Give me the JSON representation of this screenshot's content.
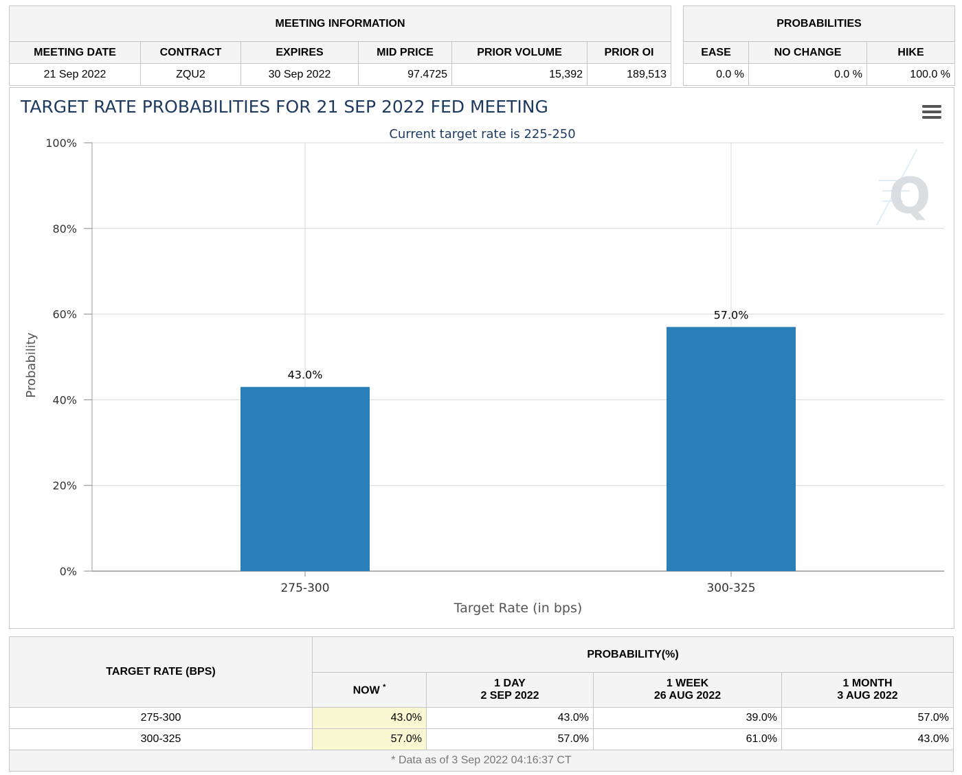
{
  "meeting_info": {
    "title": "MEETING INFORMATION",
    "columns": [
      "MEETING DATE",
      "CONTRACT",
      "EXPIRES",
      "MID PRICE",
      "PRIOR VOLUME",
      "PRIOR OI"
    ],
    "row": [
      "21 Sep 2022",
      "ZQU2",
      "30 Sep 2022",
      "97.4725",
      "15,392",
      "189,513"
    ]
  },
  "probabilities": {
    "title": "PROBABILITIES",
    "columns": [
      "EASE",
      "NO CHANGE",
      "HIKE"
    ],
    "row": [
      "0.0 %",
      "0.0 %",
      "100.0 %"
    ]
  },
  "chart_data": {
    "type": "bar",
    "title": "TARGET RATE PROBABILITIES FOR 21 SEP 2022 FED MEETING",
    "subtitle": "Current target rate is 225-250",
    "categories": [
      "275-300",
      "300-325"
    ],
    "values": [
      43.0,
      57.0
    ],
    "data_labels": [
      "43.0%",
      "57.0%"
    ],
    "xlabel": "Target Rate (in bps)",
    "ylabel": "Probability",
    "ylim": [
      0,
      100
    ],
    "yticks": [
      "0%",
      "20%",
      "40%",
      "60%",
      "80%",
      "100%"
    ],
    "grid": true,
    "bar_color": "#2980b9",
    "title_color": "#1f3a5f"
  },
  "history": {
    "target_rate_header": "TARGET RATE (BPS)",
    "probability_header": "PROBABILITY(%)",
    "now_label": "NOW",
    "now_marker": "*",
    "col_1day": {
      "line1": "1 DAY",
      "line2": "2 SEP 2022"
    },
    "col_1week": {
      "line1": "1 WEEK",
      "line2": "26 AUG 2022"
    },
    "col_1month": {
      "line1": "1 MONTH",
      "line2": "3 AUG 2022"
    },
    "rows": [
      {
        "rate": "275-300",
        "now": "43.0%",
        "day": "43.0%",
        "week": "39.0%",
        "month": "57.0%"
      },
      {
        "rate": "300-325",
        "now": "57.0%",
        "day": "57.0%",
        "week": "61.0%",
        "month": "43.0%"
      }
    ],
    "footnote": "* Data as of 3 Sep 2022 04:16:37 CT"
  }
}
